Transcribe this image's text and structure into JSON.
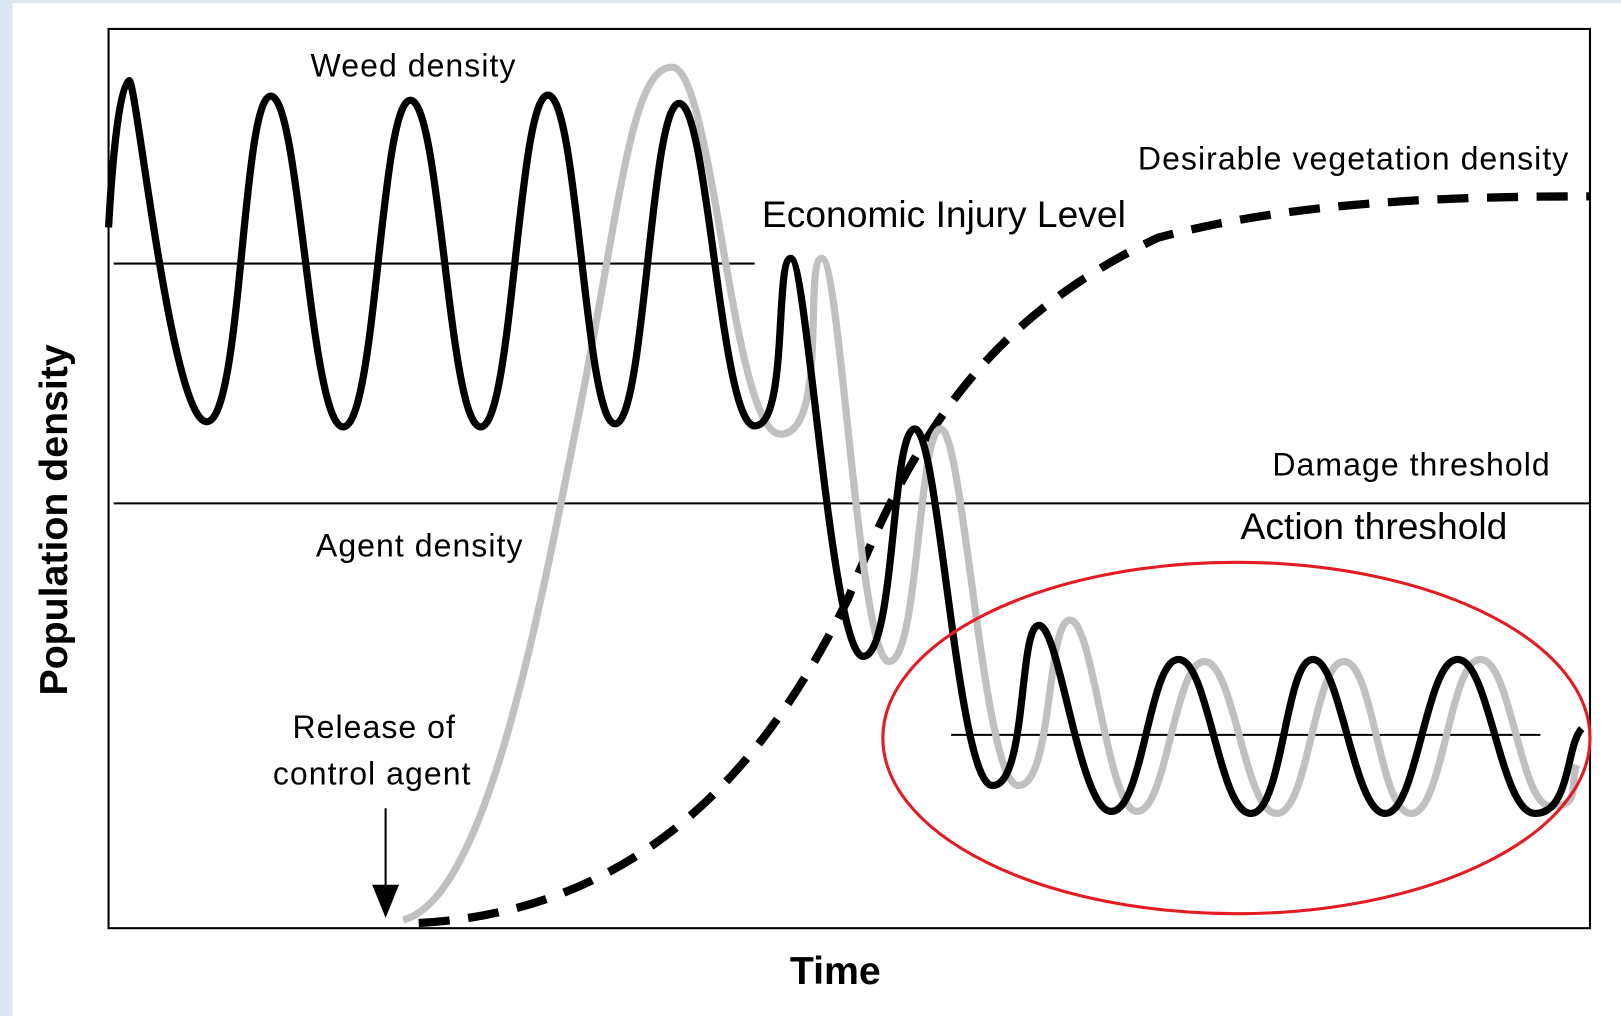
{
  "labels": {
    "weed_density": "Weed density",
    "desirable_vegetation_density": "Desirable vegetation density",
    "economic_injury_level": "Economic Injury Level",
    "damage_threshold": "Damage threshold",
    "action_threshold": "Action threshold",
    "agent_density": "Agent density",
    "release_line1": "Release of",
    "release_line2": "control agent"
  },
  "axes": {
    "y_label": "Population density",
    "x_label": "Time"
  }
}
